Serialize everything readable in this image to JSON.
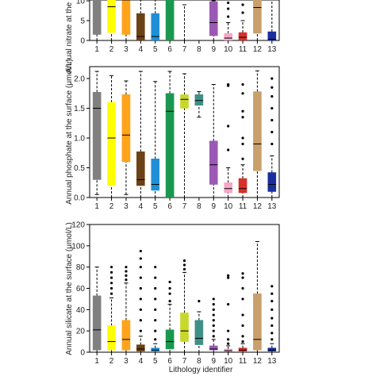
{
  "figure": {
    "xlabel": "Lithology identifier"
  },
  "chart_data": [
    {
      "type": "box",
      "ylabel": "Annual nitrate at the surface (μmol/L)",
      "ylim": [
        0,
        15
      ],
      "yticks": [
        0,
        5,
        10
      ],
      "categories": [
        "1",
        "2",
        "3",
        "4",
        "5",
        "6",
        "7",
        "8",
        "9",
        "10",
        "11",
        "12",
        "13"
      ],
      "boxes": [
        {
          "id": "1",
          "color": "#808080",
          "q1": 1.5,
          "median": 11,
          "q3": 16,
          "whislo": 0,
          "whishi": 16
        },
        {
          "id": "2",
          "color": "#FFFF00",
          "q1": 2,
          "median": 8.5,
          "q3": 16,
          "whislo": 0,
          "whishi": 16
        },
        {
          "id": "3",
          "color": "#FFA31A",
          "q1": 1.5,
          "median": 10.2,
          "q3": 16,
          "whislo": 0,
          "whishi": 16
        },
        {
          "id": "4",
          "color": "#6B4216",
          "q1": 0,
          "median": 1,
          "q3": 6.8,
          "whislo": 0,
          "whishi": 16
        },
        {
          "id": "5",
          "color": "#1F8FD8",
          "q1": 0,
          "median": 1,
          "q3": 6.8,
          "whislo": 0,
          "whishi": 16
        },
        {
          "id": "6",
          "color": "#1A9850",
          "q1": 0,
          "median": 14,
          "q3": 16,
          "whislo": 0,
          "whishi": 16
        },
        {
          "id": "7",
          "color": "#C8D82A",
          "q1": null,
          "median": null,
          "q3": null,
          "whislo": 0,
          "whishi": 9,
          "dashed_only": true
        },
        {
          "id": "8",
          "color": "#3F8F87",
          "q1": null,
          "median": null,
          "q3": null,
          "whislo": null,
          "whishi": null,
          "empty": true
        },
        {
          "id": "9",
          "color": "#9B59B6",
          "q1": 1.2,
          "median": 4.5,
          "q3": 9.8,
          "whislo": 0,
          "whishi": 10
        },
        {
          "id": "10",
          "color": "#F4A8C8",
          "q1": 0,
          "median": 0.6,
          "q3": 1.8,
          "whislo": 0,
          "whishi": 4.5,
          "outliers": [
            6,
            8,
            9.5
          ]
        },
        {
          "id": "11",
          "color": "#D7302A",
          "q1": 0,
          "median": 0.8,
          "q3": 2,
          "whislo": 0,
          "whishi": 5,
          "outliers": [
            7,
            9,
            10.5
          ]
        },
        {
          "id": "12",
          "color": "#C8A06C",
          "q1": 1.8,
          "median": 8.3,
          "q3": 16,
          "whislo": 0,
          "whishi": 16
        },
        {
          "id": "13",
          "color": "#1A2F9E",
          "q1": 0,
          "median": 0.3,
          "q3": 2.2,
          "whislo": 0,
          "whishi": 16,
          "outliers": [
            11,
            12,
            13,
            14
          ]
        }
      ]
    },
    {
      "type": "box",
      "ylabel": "Annual phosphate at the surface (μmol/L)",
      "ylim": [
        0,
        2.2
      ],
      "yticks": [
        0.0,
        0.5,
        1.0,
        1.5,
        2.0
      ],
      "ytick_labels": [
        "0.0",
        "0.5",
        "1.0",
        "1.5",
        "2.0"
      ],
      "categories": [
        "1",
        "2",
        "3",
        "4",
        "5",
        "6",
        "7",
        "8",
        "9",
        "10",
        "11",
        "12",
        "13"
      ],
      "boxes": [
        {
          "id": "1",
          "color": "#808080",
          "q1": 0.3,
          "median": 1.5,
          "q3": 1.77,
          "whislo": 0.05,
          "whishi": 2.12
        },
        {
          "id": "2",
          "color": "#FFFF00",
          "q1": 0.2,
          "median": 1.0,
          "q3": 1.6,
          "whislo": 0.0,
          "whishi": 2.05
        },
        {
          "id": "3",
          "color": "#FFA31A",
          "q1": 0.6,
          "median": 1.05,
          "q3": 1.73,
          "whislo": 0.05,
          "whishi": 1.96
        },
        {
          "id": "4",
          "color": "#6B4216",
          "q1": 0.2,
          "median": 0.3,
          "q3": 0.77,
          "whislo": 0.0,
          "whishi": 2.12
        },
        {
          "id": "5",
          "color": "#1F8FD8",
          "q1": 0.12,
          "median": 0.22,
          "q3": 0.65,
          "whislo": 0.0,
          "whishi": 1.95
        },
        {
          "id": "6",
          "color": "#1A9850",
          "q1": 0.0,
          "median": 1.45,
          "q3": 1.75,
          "whislo": 0.0,
          "whishi": 2.12
        },
        {
          "id": "7",
          "color": "#C8D82A",
          "q1": 1.5,
          "median": 1.65,
          "q3": 1.73,
          "whislo": 0.0,
          "whishi": 2.08
        },
        {
          "id": "8",
          "color": "#3F8F87",
          "q1": 1.55,
          "median": 1.63,
          "q3": 1.73,
          "whislo": 1.35,
          "whishi": 1.78
        },
        {
          "id": "9",
          "color": "#9B59B6",
          "q1": 0.22,
          "median": 0.55,
          "q3": 0.95,
          "whislo": 0.0,
          "whishi": 1.9
        },
        {
          "id": "10",
          "color": "#F4A8C8",
          "q1": 0.08,
          "median": 0.15,
          "q3": 0.25,
          "whislo": 0.0,
          "whishi": 0.5,
          "outliers": [
            0.8,
            1.2,
            1.88,
            1.9
          ]
        },
        {
          "id": "11",
          "color": "#D7302A",
          "q1": 0.08,
          "median": 0.15,
          "q3": 0.32,
          "whislo": 0.0,
          "whishi": 0.55,
          "outliers": [
            0.65,
            0.9,
            1.0,
            1.35,
            1.45,
            1.75,
            1.9
          ]
        },
        {
          "id": "12",
          "color": "#C8A06C",
          "q1": 0.45,
          "median": 0.9,
          "q3": 1.78,
          "whislo": 0.0,
          "whishi": 2.13
        },
        {
          "id": "13",
          "color": "#1A2F9E",
          "q1": 0.1,
          "median": 0.22,
          "q3": 0.42,
          "whislo": 0.0,
          "whishi": 0.7,
          "outliers": [
            0.9,
            1.1,
            1.3,
            1.5,
            1.7,
            1.85,
            2.0
          ]
        }
      ]
    },
    {
      "type": "box",
      "ylabel": "Annual silicate at the surface (μmol/L)",
      "ylim": [
        0,
        120
      ],
      "yticks": [
        0,
        20,
        40,
        60,
        80,
        100,
        120
      ],
      "categories": [
        "1",
        "2",
        "3",
        "4",
        "5",
        "6",
        "7",
        "8",
        "9",
        "10",
        "11",
        "12",
        "13"
      ],
      "boxes": [
        {
          "id": "1",
          "color": "#808080",
          "q1": 2,
          "median": 21,
          "q3": 53,
          "whislo": 0,
          "whishi": 80
        },
        {
          "id": "2",
          "color": "#FFFF00",
          "q1": 2,
          "median": 10,
          "q3": 25,
          "whislo": 0,
          "whishi": 51,
          "outliers": [
            55,
            60,
            65,
            70,
            75,
            80
          ]
        },
        {
          "id": "3",
          "color": "#FFA31A",
          "q1": 2,
          "median": 12,
          "q3": 30,
          "whislo": 0,
          "whishi": 65,
          "outliers": [
            68,
            72,
            76,
            80
          ]
        },
        {
          "id": "4",
          "color": "#6B4216",
          "q1": 1,
          "median": 3,
          "q3": 7,
          "whislo": 0,
          "whishi": 15,
          "outliers": [
            20,
            30,
            40,
            50,
            60,
            70,
            80,
            88,
            95
          ]
        },
        {
          "id": "5",
          "color": "#1F8FD8",
          "q1": 1,
          "median": 2,
          "q3": 4,
          "whislo": 0,
          "whishi": 8,
          "outliers": [
            12,
            20,
            30,
            40,
            50,
            60,
            70,
            80
          ]
        },
        {
          "id": "6",
          "color": "#1A9850",
          "q1": 3,
          "median": 10,
          "q3": 21,
          "whislo": 0,
          "whishi": 45,
          "outliers": [
            48,
            55,
            60,
            66
          ]
        },
        {
          "id": "7",
          "color": "#C8D82A",
          "q1": 10,
          "median": 20,
          "q3": 37,
          "whislo": 0,
          "whishi": 75,
          "outliers": [
            78,
            82,
            86
          ]
        },
        {
          "id": "8",
          "color": "#3F8F87",
          "q1": 7,
          "median": 13,
          "q3": 30,
          "whislo": 0,
          "whishi": 38,
          "outliers": [
            48
          ]
        },
        {
          "id": "9",
          "color": "#9B59B6",
          "q1": 2,
          "median": 3,
          "q3": 6,
          "whislo": 0,
          "whishi": 12,
          "outliers": [
            15,
            20,
            25,
            30,
            35,
            40,
            45,
            50
          ]
        },
        {
          "id": "10",
          "color": "#F4A8C8",
          "q1": 1,
          "median": 1.5,
          "q3": 3,
          "whislo": 0,
          "whishi": 6,
          "outliers": [
            8,
            12,
            20,
            45,
            70,
            72
          ]
        },
        {
          "id": "11",
          "color": "#D7302A",
          "q1": 1,
          "median": 2,
          "q3": 4,
          "whislo": 0,
          "whishi": 8,
          "outliers": [
            10,
            15,
            25,
            35,
            50,
            60,
            70,
            74
          ]
        },
        {
          "id": "12",
          "color": "#C8A06C",
          "q1": 2,
          "median": 12,
          "q3": 55,
          "whislo": 0,
          "whishi": 104
        },
        {
          "id": "13",
          "color": "#1A2F9E",
          "q1": 1,
          "median": 2,
          "q3": 4,
          "whislo": 0,
          "whishi": 8,
          "outliers": [
            12,
            18,
            25,
            32,
            40,
            48,
            55,
            62
          ]
        }
      ]
    }
  ]
}
